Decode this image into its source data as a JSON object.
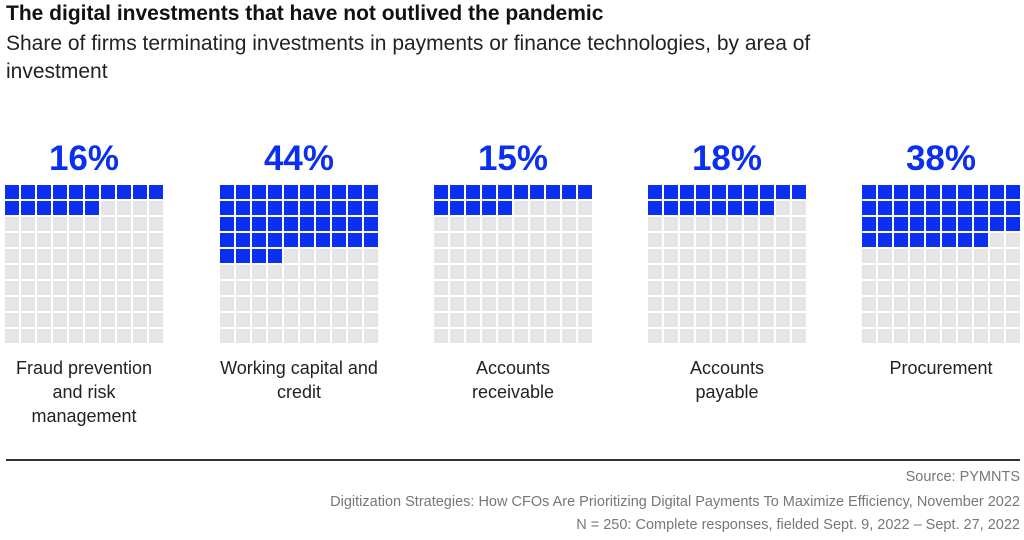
{
  "chart_data": {
    "type": "waffle",
    "title": "The digital investments that have not outlived the pandemic",
    "subtitle": "Share of firms terminating investments in payments or finance technologies, by area of investment",
    "categories": [
      "Fraud prevention and risk management",
      "Working capital and credit",
      "Accounts receivable",
      "Accounts payable",
      "Procurement"
    ],
    "values": [
      16,
      44,
      15,
      18,
      38
    ],
    "value_labels": [
      "16%",
      "44%",
      "15%",
      "18%",
      "38%"
    ],
    "color": "#0a2ff0",
    "source": "Source: PYMNTS",
    "notes": [
      "Digitization Strategies: How CFOs Are Prioritizing Digital Payments To Maximize Efficiency, November 2022",
      "N = 250: Complete responses, fielded Sept. 9, 2022 – Sept. 27, 2022"
    ]
  }
}
